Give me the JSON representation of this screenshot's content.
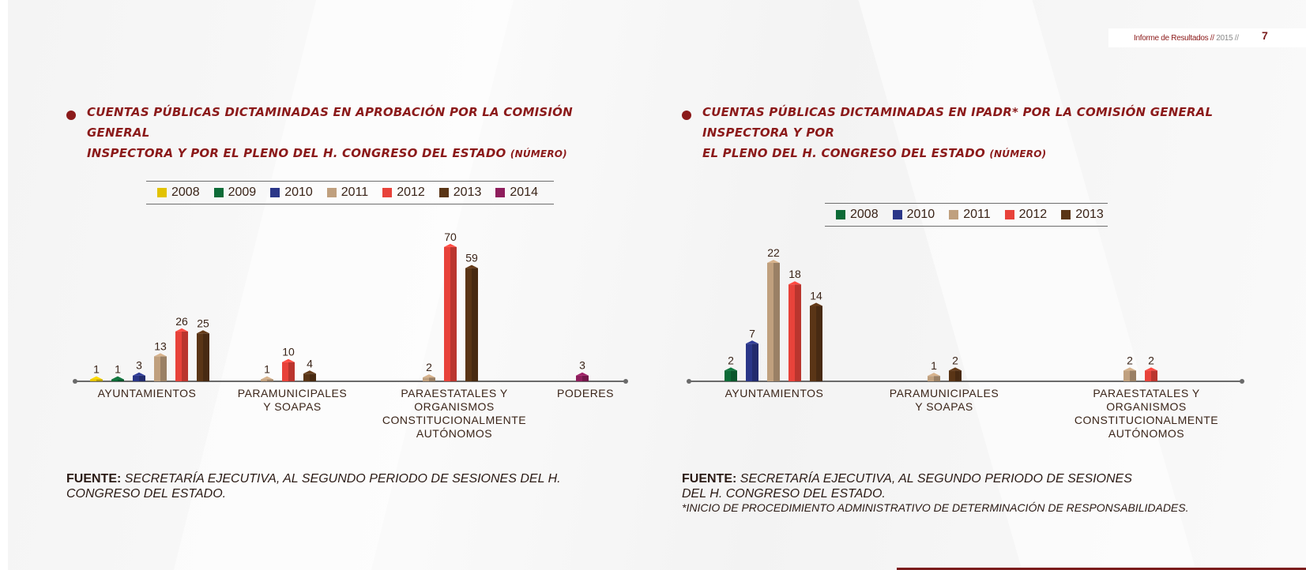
{
  "header": {
    "report_title": "Informe de Resultados //",
    "year": "2015 //",
    "page_number": "7"
  },
  "colors": {
    "2008_left": "#e2c200",
    "2008_right": "#0d6b37",
    "2009": "#0d6b37",
    "2010": "#2a3688",
    "2011": "#c0a07e",
    "2012": "#e8423a",
    "2013": "#5a3516",
    "2014": "#8e1d5c",
    "title": "#8b1a1a"
  },
  "left": {
    "title_line1": "CUENTAS PÚBLICAS DICTAMINADAS EN APROBACIÓN POR LA COMISIÓN GENERAL",
    "title_line2": "INSPECTORA Y POR EL PLENO DEL H. CONGRESO DEL ESTADO",
    "title_unit": "(NÚMERO)",
    "source_label": "FUENTE:",
    "source_text": "SECRETARÍA EJECUTIVA, AL SEGUNDO PERIODO DE SESIONES DEL H. CONGRESO DEL ESTADO."
  },
  "right": {
    "title_line1": "CUENTAS PÚBLICAS DICTAMINADAS EN IPADR* POR LA COMISIÓN GENERAL INSPECTORA Y POR",
    "title_line2": "EL PLENO DEL H. CONGRESO DEL ESTADO",
    "title_unit": "(NÚMERO)",
    "source_label": "FUENTE:",
    "source_text": "SECRETARÍA EJECUTIVA, AL SEGUNDO PERIODO DE SESIONES DEL H. CONGRESO DEL ESTADO.",
    "footnote": "*INICIO DE PROCEDIMIENTO ADMINISTRATIVO DE DETERMINACIÓN DE RESPONSABILIDADES."
  },
  "chart_data": [
    {
      "type": "bar",
      "title": "CUENTAS PÚBLICAS DICTAMINADAS EN APROBACIÓN POR LA COMISIÓN GENERAL INSPECTORA Y POR EL PLENO DEL H. CONGRESO DEL ESTADO (NÚMERO)",
      "categories": [
        "AYUNTAMIENTOS",
        "PARAMUNICIPALES\nY SOAPAS",
        "PARAESTATALES Y\nORGANISMOS\nCONSTITUCIONALMENTE\nAUTÓNOMOS",
        "PODERES"
      ],
      "series": [
        {
          "name": "2008",
          "color": "#e2c200",
          "values": [
            1,
            null,
            null,
            null
          ]
        },
        {
          "name": "2009",
          "color": "#0d6b37",
          "values": [
            1,
            null,
            null,
            null
          ]
        },
        {
          "name": "2010",
          "color": "#2a3688",
          "values": [
            3,
            null,
            null,
            null
          ]
        },
        {
          "name": "2011",
          "color": "#c0a07e",
          "values": [
            13,
            1,
            2,
            null
          ]
        },
        {
          "name": "2012",
          "color": "#e8423a",
          "values": [
            26,
            10,
            70,
            null
          ]
        },
        {
          "name": "2013",
          "color": "#5a3516",
          "values": [
            25,
            4,
            59,
            null
          ]
        },
        {
          "name": "2014",
          "color": "#8e1d5c",
          "values": [
            null,
            null,
            null,
            3
          ]
        }
      ],
      "ylim": [
        0,
        70
      ],
      "legend_position": "top",
      "grid": false
    },
    {
      "type": "bar",
      "title": "CUENTAS PÚBLICAS DICTAMINADAS EN IPADR* POR LA COMISIÓN GENERAL INSPECTORA Y POR EL PLENO DEL H. CONGRESO DEL ESTADO (NÚMERO)",
      "categories": [
        "AYUNTAMIENTOS",
        "PARAMUNICIPALES\nY SOAPAS",
        "PARAESTATALES Y\nORGANISMOS\nCONSTITUCIONALMENTE\nAUTÓNOMOS"
      ],
      "series": [
        {
          "name": "2008",
          "color": "#0d6b37",
          "values": [
            2,
            null,
            null
          ]
        },
        {
          "name": "2010",
          "color": "#2a3688",
          "values": [
            7,
            null,
            null
          ]
        },
        {
          "name": "2011",
          "color": "#c0a07e",
          "values": [
            22,
            1,
            2
          ]
        },
        {
          "name": "2012",
          "color": "#e8423a",
          "values": [
            18,
            null,
            2
          ]
        },
        {
          "name": "2013",
          "color": "#5a3516",
          "values": [
            14,
            2,
            null
          ]
        }
      ],
      "ylim": [
        0,
        22
      ],
      "legend_position": "top",
      "grid": false
    }
  ]
}
